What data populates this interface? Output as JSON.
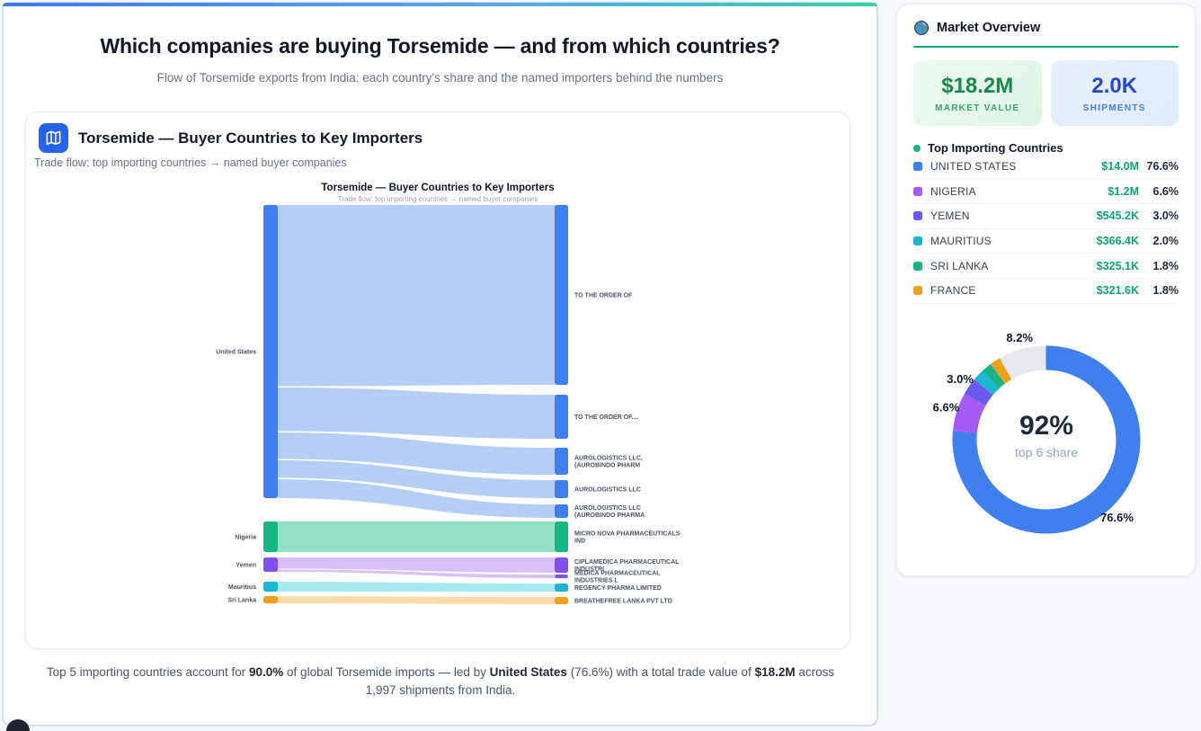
{
  "page": {
    "title": "Which companies are buying Torsemide — and from which countries?",
    "subtitle": "Flow of Torsemide exports from India: each country's share and the named importers behind the numbers"
  },
  "chart_card": {
    "icon": "map-icon",
    "title": "Torsemide — Buyer Countries to Key Importers",
    "subtitle": "Trade flow: top importing countries → named buyer companies"
  },
  "footer": {
    "part1": "Top 5 importing countries account for ",
    "bold1": "90.0%",
    "part2": " of global Torsemide imports — led by ",
    "bold2": "United States",
    "part3": " (76.6%) with a total trade value of ",
    "bold3": "$18.2M",
    "part4": " across 1,997 shipments from India."
  },
  "sidebar": {
    "icon": "globe-icon",
    "title": "Market Overview",
    "stats": [
      {
        "value": "$18.2M",
        "label": "MARKET VALUE",
        "theme": "green"
      },
      {
        "value": "2.0K",
        "label": "SHIPMENTS",
        "theme": "blue"
      }
    ],
    "list_title": "Top Importing Countries",
    "countries": [
      {
        "name": "UNITED STATES",
        "value": "$14.0M",
        "pct": "76.6%",
        "color": "#4080ee"
      },
      {
        "name": "NIGERIA",
        "value": "$1.2M",
        "pct": "6.6%",
        "color": "#a55bf2"
      },
      {
        "name": "YEMEN",
        "value": "$545.2K",
        "pct": "3.0%",
        "color": "#6a5cf0"
      },
      {
        "name": "MAURITIUS",
        "value": "$366.4K",
        "pct": "2.0%",
        "color": "#1db6d2"
      },
      {
        "name": "SRI LANKA",
        "value": "$325.1K",
        "pct": "1.8%",
        "color": "#16b589"
      },
      {
        "name": "FRANCE",
        "value": "$321.6K",
        "pct": "1.8%",
        "color": "#f0a11c"
      }
    ]
  },
  "chart_data": [
    {
      "type": "sankey",
      "title": "Torsemide — Buyer Countries to Key Importers",
      "subtitle": "Trade flow: top importing countries → named buyer companies",
      "nodes": [
        {
          "id": "us",
          "side": "left",
          "label": [
            "United States"
          ],
          "color": "#4080ee",
          "flow_color": "#b6cdf5",
          "value_pct": 76.6
        },
        {
          "id": "nigeria",
          "side": "left",
          "label": [
            "Nigeria"
          ],
          "color": "#16b584",
          "flow_color": "#93dfc4",
          "value_pct": 6.6
        },
        {
          "id": "yemen",
          "side": "left",
          "label": [
            "Yemen"
          ],
          "color": "#8250f0",
          "flow_color": "#d8c0f8",
          "value_pct": 3.0
        },
        {
          "id": "mauritius",
          "side": "left",
          "label": [
            "Mauritius"
          ],
          "color": "#1db6d2",
          "flow_color": "#a6e9ef",
          "value_pct": 2.0
        },
        {
          "id": "srilanka",
          "side": "left",
          "label": [
            "Sri Lanka"
          ],
          "color": "#f2a019",
          "flow_color": "#f8dba6",
          "value_pct": 1.8
        },
        {
          "id": "r1",
          "side": "right",
          "label": [
            "TO THE ORDER OF"
          ],
          "color": "#4080ee"
        },
        {
          "id": "r2",
          "side": "right",
          "label": [
            "TO THE ORDER OF...."
          ],
          "color": "#4080ee"
        },
        {
          "id": "r3",
          "side": "right",
          "label": [
            "AUROLOGISTICS LLC,",
            "(AUROBINDO PHARM"
          ],
          "color": "#4080ee"
        },
        {
          "id": "r4",
          "side": "right",
          "label": [
            "AUROLOGISTICS LLC"
          ],
          "color": "#4080ee"
        },
        {
          "id": "r5",
          "side": "right",
          "label": [
            "AUROLOGISTICS LLC",
            "(AUROBINDO PHARMA"
          ],
          "color": "#4080ee"
        },
        {
          "id": "r6",
          "side": "right",
          "label": [
            "MICRO NOVA PHARMACEUTICALS",
            "IND"
          ],
          "color": "#16b584"
        },
        {
          "id": "r7",
          "side": "right",
          "label": [
            "CIPLAMEDICA PHARMACEUTICAL",
            "INDUSTRI"
          ],
          "color": "#8250f0"
        },
        {
          "id": "r8",
          "side": "right",
          "label": [
            "MEDICA PHARMACEUTICAL",
            "INDUSTRIES L"
          ],
          "color": "#8250f0"
        },
        {
          "id": "r9",
          "side": "right",
          "label": [
            "REGENCY PHARMA LIMITED"
          ],
          "color": "#1db6d2"
        },
        {
          "id": "r10",
          "side": "right",
          "label": [
            "BREATHEFREE LANKA PVT LTD"
          ],
          "color": "#f2a019"
        }
      ],
      "links": [
        {
          "source": "us",
          "target": "r1",
          "share_pct_est": 47.0
        },
        {
          "source": "us",
          "target": "r2",
          "share_pct_est": 11.6
        },
        {
          "source": "us",
          "target": "r3",
          "share_pct_est": 7.1
        },
        {
          "source": "us",
          "target": "r4",
          "share_pct_est": 4.7
        },
        {
          "source": "us",
          "target": "r5",
          "share_pct_est": 3.5
        },
        {
          "source": "nigeria",
          "target": "r6",
          "share_pct_est": 6.6
        },
        {
          "source": "yemen",
          "target": "r7",
          "share_pct_est": 2.6
        },
        {
          "source": "yemen",
          "target": "r8",
          "share_pct_est": 0.4
        },
        {
          "source": "mauritius",
          "target": "r9",
          "share_pct_est": 2.0
        },
        {
          "source": "srilanka",
          "target": "r10",
          "share_pct_est": 1.8
        }
      ]
    },
    {
      "type": "donut",
      "center_value": "92%",
      "center_label": "top 6 share",
      "legend_position": "none",
      "segments": [
        {
          "name": "UNITED STATES",
          "value": 76.6,
          "pct": "76.6%",
          "color": "#4080ee",
          "label_shown": true
        },
        {
          "name": "NIGERIA",
          "value": 6.6,
          "pct": "6.6%",
          "color": "#a55bf2",
          "label_shown": true
        },
        {
          "name": "YEMEN",
          "value": 3.0,
          "pct": "3.0%",
          "color": "#6a5cf0",
          "label_shown": true
        },
        {
          "name": "MAURITIUS",
          "value": 2.0,
          "pct": "2.0%",
          "color": "#1db6d2",
          "label_shown": false
        },
        {
          "name": "SRI LANKA",
          "value": 1.8,
          "pct": "1.8%",
          "color": "#16b589",
          "label_shown": false
        },
        {
          "name": "FRANCE",
          "value": 1.8,
          "pct": "1.8%",
          "color": "#f0a11c",
          "label_shown": false
        },
        {
          "name": "",
          "value": 8.2,
          "pct": "8.2%",
          "color": "#e6e8ec",
          "label_shown": true
        }
      ]
    }
  ]
}
